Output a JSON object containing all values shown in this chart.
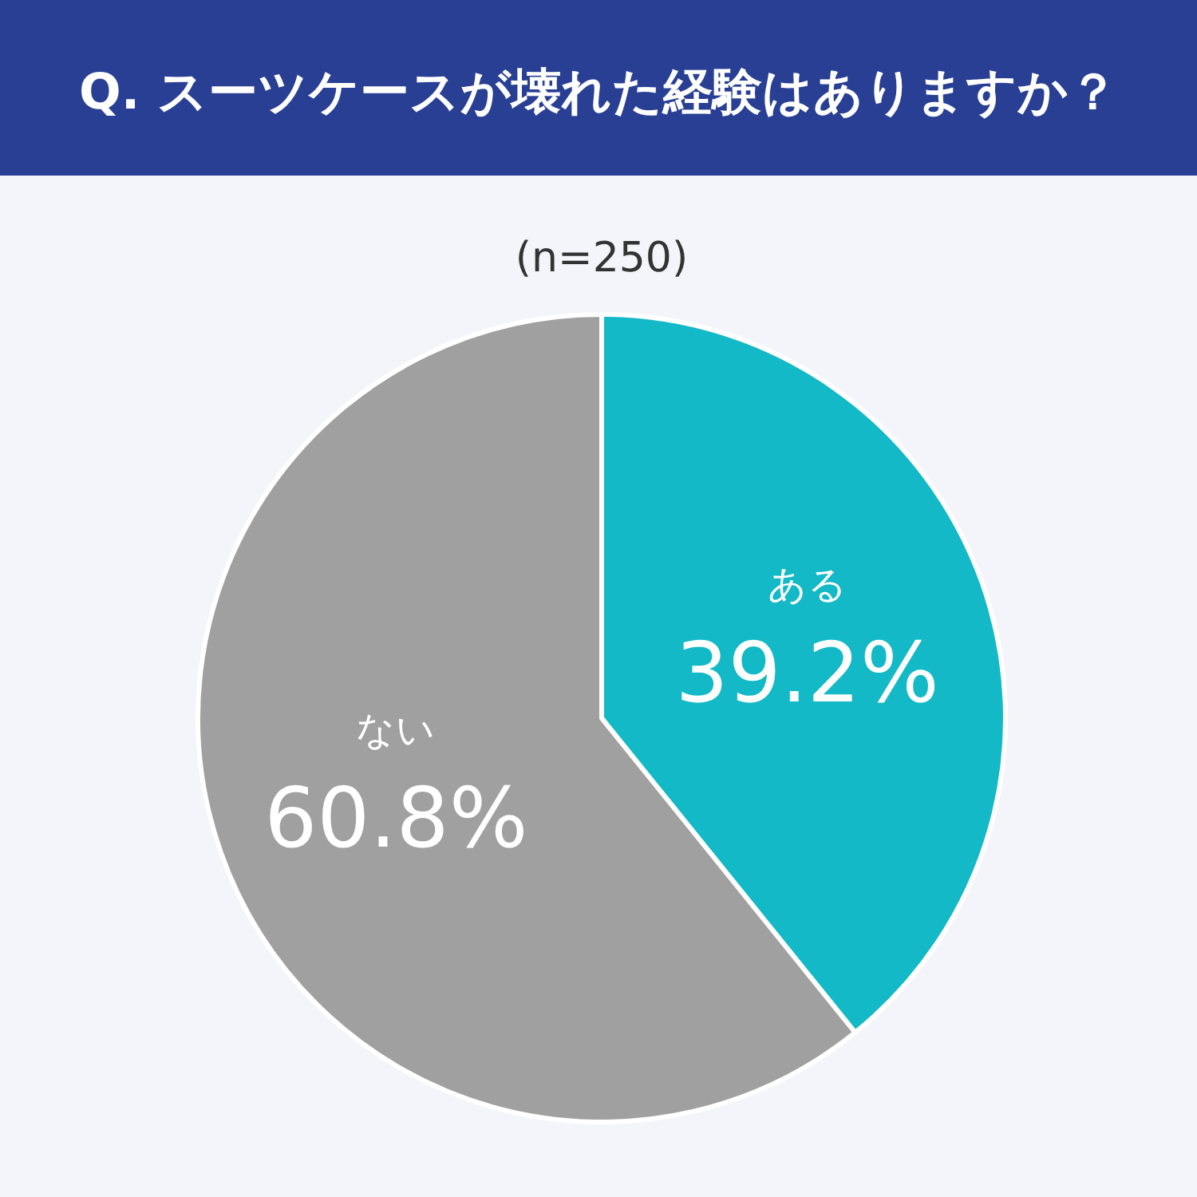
{
  "chart_data": {
    "type": "pie",
    "title": "Q. スーツケースが壊れた経験はありますか？",
    "subtitle": "(n=250)",
    "categories": [
      "ある",
      "ない"
    ],
    "values": [
      39.2,
      60.8
    ],
    "colors": [
      "#13b9c6",
      "#a0a0a0"
    ],
    "value_labels": [
      "39.2%",
      "60.8%"
    ],
    "legend": false
  }
}
